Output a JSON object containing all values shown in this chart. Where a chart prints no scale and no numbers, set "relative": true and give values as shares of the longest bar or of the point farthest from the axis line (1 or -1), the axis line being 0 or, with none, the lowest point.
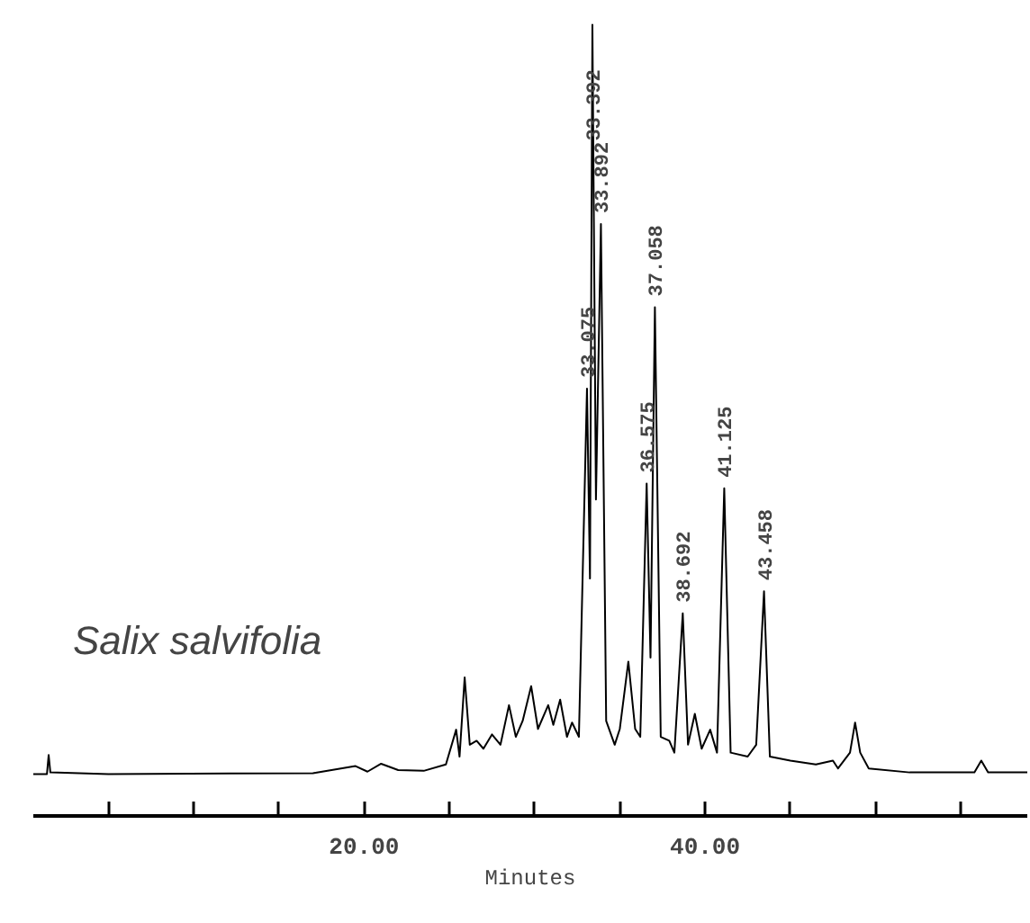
{
  "chart_data": {
    "type": "line",
    "relative": true,
    "xlabel": "Minutes",
    "xlim": [
      0.6,
      58.9
    ],
    "xticks": [
      {
        "value": 5,
        "label": null
      },
      {
        "value": 10,
        "label": null
      },
      {
        "value": 15,
        "label": null
      },
      {
        "value": 20,
        "label": "20.00"
      },
      {
        "value": 25,
        "label": null
      },
      {
        "value": 30,
        "label": null
      },
      {
        "value": 35,
        "label": null
      },
      {
        "value": 40,
        "label": "40.00"
      },
      {
        "value": 45,
        "label": null
      },
      {
        "value": 50,
        "label": null
      },
      {
        "value": 55,
        "label": null
      }
    ],
    "tick_labels": "x",
    "grid": false,
    "marker": "none",
    "line_style": "solid",
    "series": [
      {
        "color": "#000000",
        "x": [
          0.6,
          1.4,
          1.5,
          1.6,
          5,
          17,
          19.5,
          20.2,
          21,
          22,
          23.5,
          24.8,
          25.4,
          25.6,
          25.9,
          26.2,
          26.6,
          27.0,
          27.5,
          28.0,
          28.5,
          28.9,
          29.3,
          29.8,
          30.2,
          30.8,
          31.1,
          31.5,
          31.9,
          32.2,
          32.6,
          33.075,
          33.25,
          33.392,
          33.6,
          33.892,
          34.2,
          34.7,
          35.0,
          35.5,
          35.9,
          36.2,
          36.575,
          36.8,
          37.058,
          37.4,
          37.9,
          38.2,
          38.692,
          39.0,
          39.4,
          39.8,
          40.3,
          40.7,
          41.125,
          41.5,
          42.5,
          43.0,
          43.458,
          43.8,
          45,
          46.5,
          47.5,
          47.8,
          48.5,
          48.8,
          49.1,
          49.6,
          52,
          55.8,
          56.2,
          56.6,
          58.9
        ],
        "values": [
          0.053,
          0.053,
          0.077,
          0.055,
          0.053,
          0.054,
          0.063,
          0.056,
          0.066,
          0.058,
          0.057,
          0.065,
          0.109,
          0.075,
          0.175,
          0.09,
          0.095,
          0.085,
          0.103,
          0.09,
          0.14,
          0.1,
          0.12,
          0.164,
          0.11,
          0.14,
          0.115,
          0.147,
          0.1,
          0.118,
          0.1,
          0.54,
          0.3,
          1,
          0.4,
          0.748,
          0.12,
          0.09,
          0.11,
          0.195,
          0.11,
          0.1,
          0.42,
          0.2,
          0.643,
          0.1,
          0.095,
          0.08,
          0.256,
          0.09,
          0.129,
          0.085,
          0.109,
          0.08,
          0.414,
          0.08,
          0.075,
          0.09,
          0.284,
          0.075,
          0.07,
          0.065,
          0.07,
          0.06,
          0.08,
          0.118,
          0.08,
          0.06,
          0.055,
          0.055,
          0.07,
          0.055,
          0.055
        ]
      }
    ],
    "annotations": [
      "Salix salvifolia",
      {
        "text": "33.075",
        "x": 33.075,
        "y": 0.54
      },
      {
        "text": "33.392",
        "x": 33.392,
        "y": 1
      },
      {
        "text": "33.892",
        "x": 33.892,
        "y": 0.748
      },
      {
        "text": "36.575",
        "x": 36.575,
        "y": 0.42
      },
      {
        "text": "37.058",
        "x": 37.058,
        "y": 0.643
      },
      {
        "text": "38.692",
        "x": 38.692,
        "y": 0.256
      },
      {
        "text": "41.125",
        "x": 41.125,
        "y": 0.414
      },
      {
        "text": "43.458",
        "x": 43.458,
        "y": 0.284
      }
    ]
  }
}
